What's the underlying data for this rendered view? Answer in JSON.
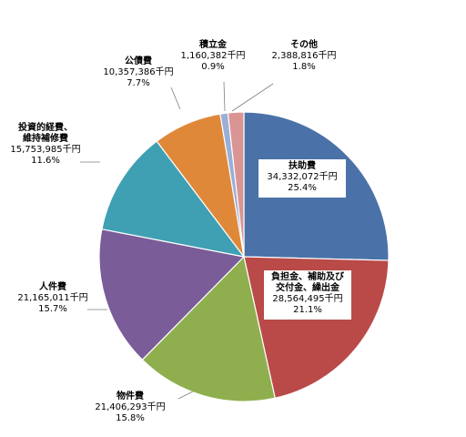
{
  "chart_data": {
    "type": "pie",
    "slices": [
      {
        "label": "扶助費",
        "label_lines": [
          "扶助費"
        ],
        "value_text": "34,332,072千円",
        "value": 34332072,
        "pct_text": "25.4%",
        "pct": 25.4,
        "color": "#4a72a8",
        "boxed": true
      },
      {
        "label": "負担金、補助及び交付金、繰出金",
        "label_lines": [
          "負担金、補助及び",
          "交付金、繰出金"
        ],
        "value_text": "28,564,495千円",
        "value": 28564495,
        "pct_text": "21.1%",
        "pct": 21.1,
        "color": "#b94a48",
        "boxed": true
      },
      {
        "label": "物件費",
        "label_lines": [
          "物件費"
        ],
        "value_text": "21,406,293千円",
        "value": 21406293,
        "pct_text": "15.8%",
        "pct": 15.8,
        "color": "#8faf4f",
        "boxed": false
      },
      {
        "label": "人件費",
        "label_lines": [
          "人件費"
        ],
        "value_text": "21,165,011千円",
        "value": 21165011,
        "pct_text": "15.7%",
        "pct": 15.7,
        "color": "#7a5c98",
        "boxed": false
      },
      {
        "label": "投資的経費、維持補修費",
        "label_lines": [
          "投資的経費、",
          "維持補修費"
        ],
        "value_text": "15,753,985千円",
        "value": 15753985,
        "pct_text": "11.6%",
        "pct": 11.6,
        "color": "#3f9fb3",
        "boxed": false
      },
      {
        "label": "公債費",
        "label_lines": [
          "公債費"
        ],
        "value_text": "10,357,386千円",
        "value": 10357386,
        "pct_text": "7.7%",
        "pct": 7.7,
        "color": "#e0883a",
        "boxed": false
      },
      {
        "label": "積立金",
        "label_lines": [
          "積立金"
        ],
        "value_text": "1,160,382千円",
        "value": 1160382,
        "pct_text": "0.9%",
        "pct": 0.9,
        "color": "#9aaed6",
        "boxed": false
      },
      {
        "label": "その他",
        "label_lines": [
          "その他"
        ],
        "value_text": "2,388,816千円",
        "value": 2388816,
        "pct_text": "1.8%",
        "pct": 1.8,
        "color": "#d99594",
        "boxed": false
      }
    ],
    "legend": "none",
    "start_angle": "12 o'clock, clockwise"
  }
}
